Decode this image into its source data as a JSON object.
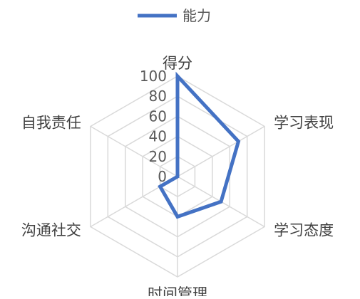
{
  "chart_data": {
    "type": "radar",
    "categories": [
      "得分",
      "学习表现",
      "学习态度",
      "时间管理",
      "沟通社交",
      "自我责任"
    ],
    "series": [
      {
        "name": "能力",
        "values": [
          100,
          70,
          50,
          40,
          20,
          0
        ],
        "color": "#4472c4"
      }
    ],
    "rlim": [
      0,
      100
    ],
    "ticks": [
      "0",
      "20",
      "40",
      "60",
      "80",
      "100"
    ],
    "legend": "top",
    "grid": true
  }
}
